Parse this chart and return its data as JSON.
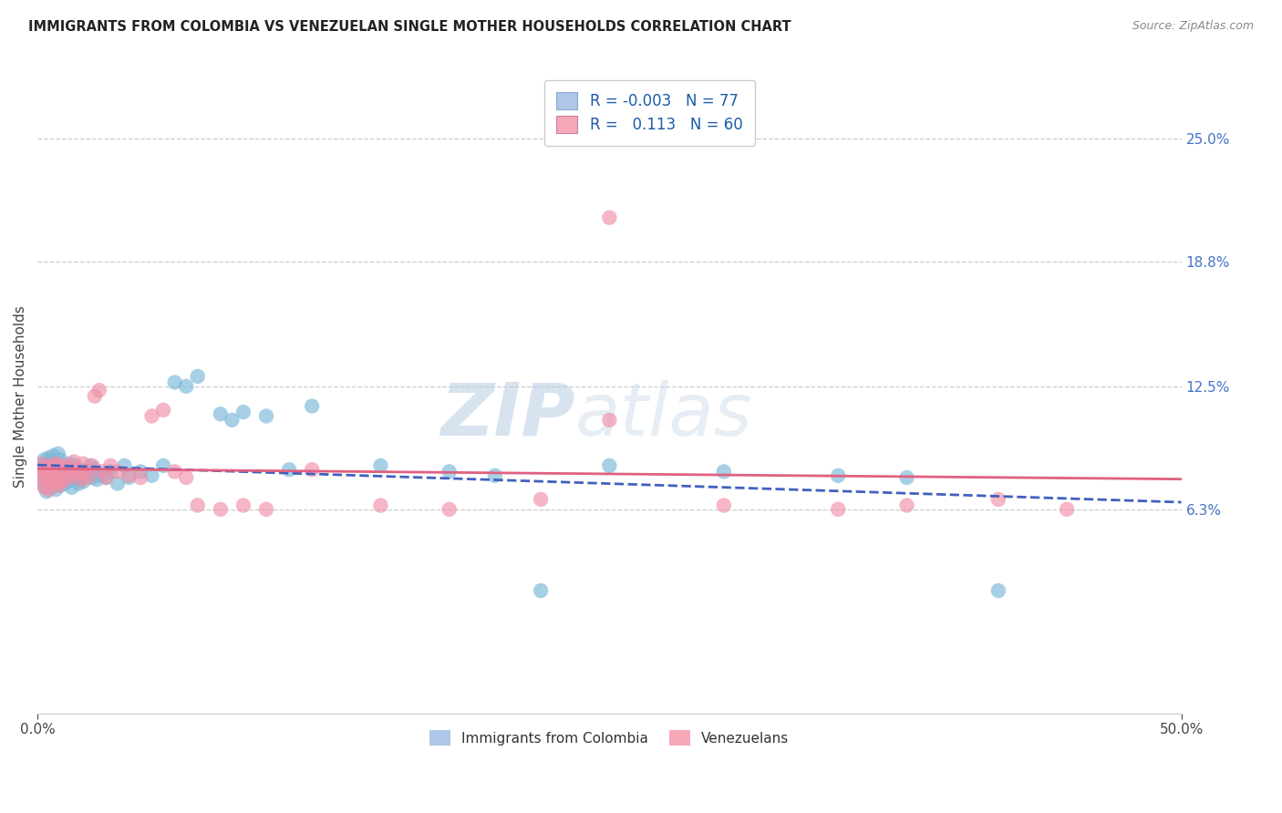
{
  "title": "IMMIGRANTS FROM COLOMBIA VS VENEZUELAN SINGLE MOTHER HOUSEHOLDS CORRELATION CHART",
  "source": "Source: ZipAtlas.com",
  "ylabel": "Single Mother Households",
  "ytick_labels": [
    "6.3%",
    "12.5%",
    "18.8%",
    "25.0%"
  ],
  "ytick_values": [
    0.063,
    0.125,
    0.188,
    0.25
  ],
  "xlim": [
    0.0,
    0.5
  ],
  "ylim": [
    -0.04,
    0.28
  ],
  "legend_entries": [
    {
      "label": "Immigrants from Colombia",
      "R": "-0.003",
      "N": "77",
      "color": "#aec6e8"
    },
    {
      "label": "Venezuelans",
      "R": "0.113",
      "N": "60",
      "color": "#f4a8b8"
    }
  ],
  "watermark": "ZIPatlas",
  "colombia_color": "#7ab8d8",
  "venezuela_color": "#f090a8",
  "colombia_line_color": "#4060c0",
  "venezuela_line_color": "#e06080",
  "right_axis_color": "#4472c4",
  "grid_color": "#cccccc",
  "colombia_x": [
    0.001,
    0.002,
    0.002,
    0.003,
    0.003,
    0.003,
    0.004,
    0.004,
    0.004,
    0.005,
    0.005,
    0.005,
    0.006,
    0.006,
    0.006,
    0.007,
    0.007,
    0.007,
    0.008,
    0.008,
    0.008,
    0.009,
    0.009,
    0.009,
    0.01,
    0.01,
    0.01,
    0.011,
    0.011,
    0.012,
    0.012,
    0.013,
    0.013,
    0.014,
    0.014,
    0.015,
    0.015,
    0.016,
    0.016,
    0.017,
    0.018,
    0.018,
    0.019,
    0.02,
    0.021,
    0.022,
    0.023,
    0.024,
    0.025,
    0.026,
    0.028,
    0.03,
    0.032,
    0.035,
    0.038,
    0.04,
    0.045,
    0.05,
    0.055,
    0.06,
    0.065,
    0.07,
    0.08,
    0.085,
    0.09,
    0.1,
    0.11,
    0.12,
    0.15,
    0.18,
    0.2,
    0.22,
    0.25,
    0.3,
    0.35,
    0.38,
    0.42
  ],
  "colombia_y": [
    0.082,
    0.078,
    0.085,
    0.075,
    0.08,
    0.088,
    0.072,
    0.079,
    0.085,
    0.076,
    0.082,
    0.089,
    0.074,
    0.081,
    0.087,
    0.077,
    0.083,
    0.09,
    0.073,
    0.08,
    0.086,
    0.078,
    0.084,
    0.091,
    0.075,
    0.082,
    0.088,
    0.079,
    0.085,
    0.076,
    0.083,
    0.077,
    0.084,
    0.079,
    0.086,
    0.074,
    0.081,
    0.078,
    0.085,
    0.08,
    0.076,
    0.083,
    0.079,
    0.077,
    0.08,
    0.082,
    0.085,
    0.079,
    0.083,
    0.078,
    0.08,
    0.079,
    0.082,
    0.076,
    0.085,
    0.079,
    0.082,
    0.08,
    0.085,
    0.127,
    0.125,
    0.13,
    0.111,
    0.108,
    0.112,
    0.11,
    0.083,
    0.115,
    0.085,
    0.082,
    0.08,
    0.022,
    0.085,
    0.082,
    0.08,
    0.079,
    0.022
  ],
  "venezuela_x": [
    0.001,
    0.002,
    0.002,
    0.003,
    0.003,
    0.004,
    0.004,
    0.005,
    0.005,
    0.006,
    0.006,
    0.007,
    0.007,
    0.008,
    0.008,
    0.009,
    0.009,
    0.01,
    0.01,
    0.011,
    0.011,
    0.012,
    0.013,
    0.014,
    0.015,
    0.016,
    0.017,
    0.018,
    0.019,
    0.02,
    0.021,
    0.022,
    0.024,
    0.025,
    0.027,
    0.028,
    0.03,
    0.032,
    0.035,
    0.04,
    0.045,
    0.05,
    0.055,
    0.06,
    0.065,
    0.07,
    0.08,
    0.09,
    0.1,
    0.12,
    0.15,
    0.18,
    0.22,
    0.25,
    0.3,
    0.35,
    0.38,
    0.42,
    0.45,
    0.25
  ],
  "venezuela_y": [
    0.079,
    0.083,
    0.086,
    0.074,
    0.081,
    0.077,
    0.084,
    0.073,
    0.082,
    0.078,
    0.085,
    0.076,
    0.083,
    0.079,
    0.086,
    0.075,
    0.082,
    0.078,
    0.085,
    0.08,
    0.077,
    0.083,
    0.085,
    0.079,
    0.082,
    0.087,
    0.083,
    0.081,
    0.078,
    0.086,
    0.082,
    0.079,
    0.085,
    0.12,
    0.123,
    0.082,
    0.079,
    0.085,
    0.082,
    0.08,
    0.079,
    0.11,
    0.113,
    0.082,
    0.079,
    0.065,
    0.063,
    0.065,
    0.063,
    0.083,
    0.065,
    0.063,
    0.068,
    0.108,
    0.065,
    0.063,
    0.065,
    0.068,
    0.063,
    0.21
  ]
}
